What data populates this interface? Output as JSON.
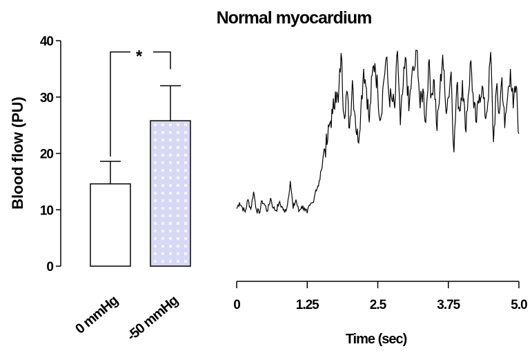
{
  "chart_data": [
    {
      "type": "bar",
      "title": "Normal myocardium",
      "ylabel": "Blood flow (PU)",
      "ylim": [
        0,
        40
      ],
      "yticks": [
        0,
        10,
        20,
        30,
        40
      ],
      "categories": [
        "0 mmHg",
        "-50 mmHg"
      ],
      "values": [
        14.6,
        25.8
      ],
      "error_upper": [
        18.6,
        32.0
      ],
      "colors": [
        "#ffffff",
        "#d6d8f5"
      ],
      "significance": {
        "between": [
          0,
          1
        ],
        "label": "*",
        "y": 38.0
      }
    },
    {
      "type": "line",
      "xlabel": "Time (sec)",
      "xlim": [
        0,
        5.0
      ],
      "ylim": [
        0,
        40
      ],
      "xtick_labels": [
        "0",
        "1.25",
        "2.5",
        "3.75",
        "5.0"
      ],
      "xticks": [
        0,
        1.25,
        2.5,
        3.75,
        5.0
      ],
      "series": [
        {
          "x": [
            0,
            0.05,
            0.1,
            0.15,
            0.2,
            0.25,
            0.3,
            0.35,
            0.4,
            0.45,
            0.5,
            0.55,
            0.6,
            0.65,
            0.7,
            0.75,
            0.8,
            0.85,
            0.9,
            0.95,
            1.0,
            1.05,
            1.1,
            1.15,
            1.2,
            1.25,
            1.3,
            1.35,
            1.4,
            1.45,
            1.5,
            1.55,
            1.6,
            1.65,
            1.7,
            1.75,
            1.8,
            1.85,
            1.9,
            1.95,
            2.0,
            2.05,
            2.1,
            2.15,
            2.2,
            2.25,
            2.3,
            2.35,
            2.4,
            2.45,
            2.5,
            2.55,
            2.6,
            2.65,
            2.7,
            2.75,
            2.8,
            2.85,
            2.9,
            2.95,
            3.0,
            3.05,
            3.1,
            3.15,
            3.2,
            3.25,
            3.3,
            3.35,
            3.4,
            3.45,
            3.5,
            3.55,
            3.6,
            3.65,
            3.7,
            3.75,
            3.8,
            3.85,
            3.9,
            3.95,
            4.0,
            4.05,
            4.1,
            4.15,
            4.2,
            4.25,
            4.3,
            4.35,
            4.4,
            4.45,
            4.5,
            4.55,
            4.6,
            4.65,
            4.7,
            4.75,
            4.8,
            4.85,
            4.9,
            4.95,
            5.0
          ],
          "y": [
            10.2,
            11.3,
            10.4,
            9.6,
            11.8,
            10.1,
            13.2,
            10.0,
            9.4,
            11.6,
            10.8,
            9.8,
            12.1,
            10.3,
            9.9,
            11.2,
            10.6,
            9.5,
            10.9,
            15.1,
            10.2,
            11.8,
            9.7,
            10.6,
            10.3,
            9.4,
            10.8,
            11.3,
            13.5,
            14.2,
            17.0,
            20.8,
            21.5,
            25.4,
            27.0,
            31.0,
            29.0,
            37.8,
            27.0,
            31.0,
            24.5,
            33.0,
            26.4,
            22.0,
            28.0,
            35.0,
            31.5,
            25.5,
            33.8,
            36.0,
            31.0,
            26.0,
            32.5,
            37.0,
            30.0,
            29.5,
            28.0,
            38.2,
            25.0,
            32.0,
            36.8,
            27.5,
            33.5,
            35.0,
            38.2,
            28.0,
            31.5,
            25.5,
            36.0,
            30.5,
            33.0,
            24.0,
            31.0,
            37.5,
            28.5,
            30.0,
            34.5,
            20.2,
            32.0,
            27.5,
            33.0,
            24.5,
            30.0,
            36.5,
            28.0,
            25.5,
            30.5,
            32.0,
            26.5,
            29.0,
            38.0,
            22.0,
            31.5,
            27.0,
            33.5,
            24.5,
            30.0,
            35.0,
            28.0,
            32.0,
            23.5
          ]
        }
      ]
    }
  ]
}
